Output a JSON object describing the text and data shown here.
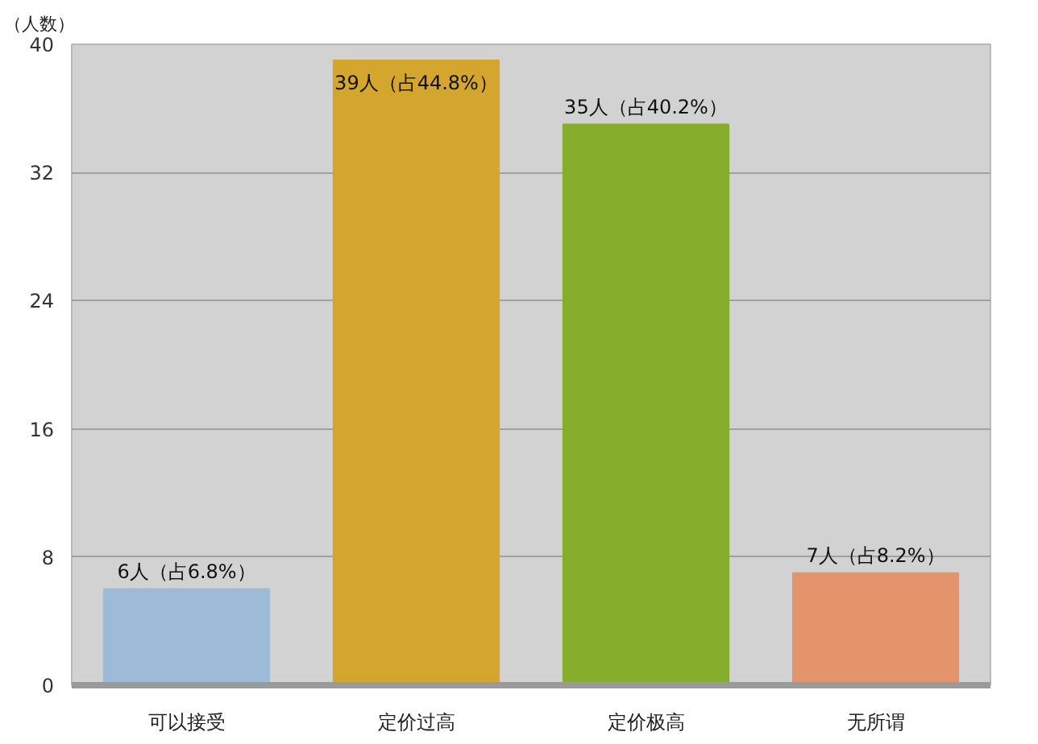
{
  "chart_data": {
    "type": "bar",
    "ylabel": "（人数）",
    "categories": [
      "可以接受",
      "定价过高",
      "定价极高",
      "无所谓"
    ],
    "values": [
      6,
      39,
      35,
      7
    ],
    "colors": [
      "#9dbbd6",
      "#d4a62e",
      "#86ae2c",
      "#e3946a"
    ],
    "value_labels": [
      "6人（占6.8%）",
      "39人（占44.8%）",
      "35人（占40.2%）",
      "7人（占8.2%）"
    ],
    "ylim": [
      0,
      40
    ],
    "yticks": [
      0,
      8,
      16,
      24,
      32,
      40
    ],
    "grid": "y"
  }
}
